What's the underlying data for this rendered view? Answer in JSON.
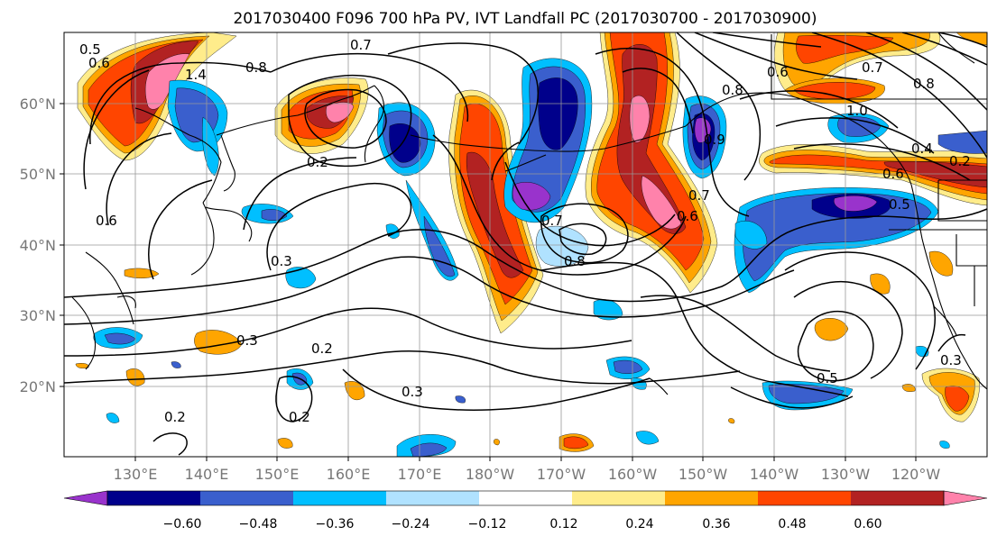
{
  "title": "2017030400 F096 700 hPa PV, IVT Landfall PC (2017030700 - 2017030900)",
  "map": {
    "lat_ticks": [
      "60°N",
      "50°N",
      "40°N",
      "30°N",
      "20°N"
    ],
    "lon_ticks": [
      "130°E",
      "140°E",
      "150°E",
      "160°E",
      "170°E",
      "180°W",
      "170°W",
      "160°W",
      "150°W",
      "140°W",
      "130°W",
      "120°W"
    ],
    "contour_labels": [
      "0.5",
      "0.6",
      "0.7",
      "1.4",
      "0.8",
      "0.2",
      "0.6",
      "0.7",
      "0.8",
      "0.5",
      "0.6",
      "1.0",
      "0.4",
      "0.3",
      "0.2",
      "0.3",
      "0.2",
      "0.7",
      "0.8",
      "0.7",
      "0.6",
      "0.2",
      "0.5",
      "0.3",
      "0.3",
      "0.6",
      "0.8",
      "0.9",
      "0.2"
    ]
  },
  "colorbar": {
    "tick_labels": [
      "−0.60",
      "−0.48",
      "−0.36",
      "−0.24",
      "−0.12",
      "0.12",
      "0.24",
      "0.36",
      "0.48",
      "0.60"
    ],
    "colors": [
      "#9933cc",
      "#00008b",
      "#3a5fcd",
      "#00bfff",
      "#b0e2ff",
      "#ffffff",
      "#ffec8b",
      "#ffa500",
      "#ff4500",
      "#b22222",
      "#ff82ab"
    ]
  }
}
